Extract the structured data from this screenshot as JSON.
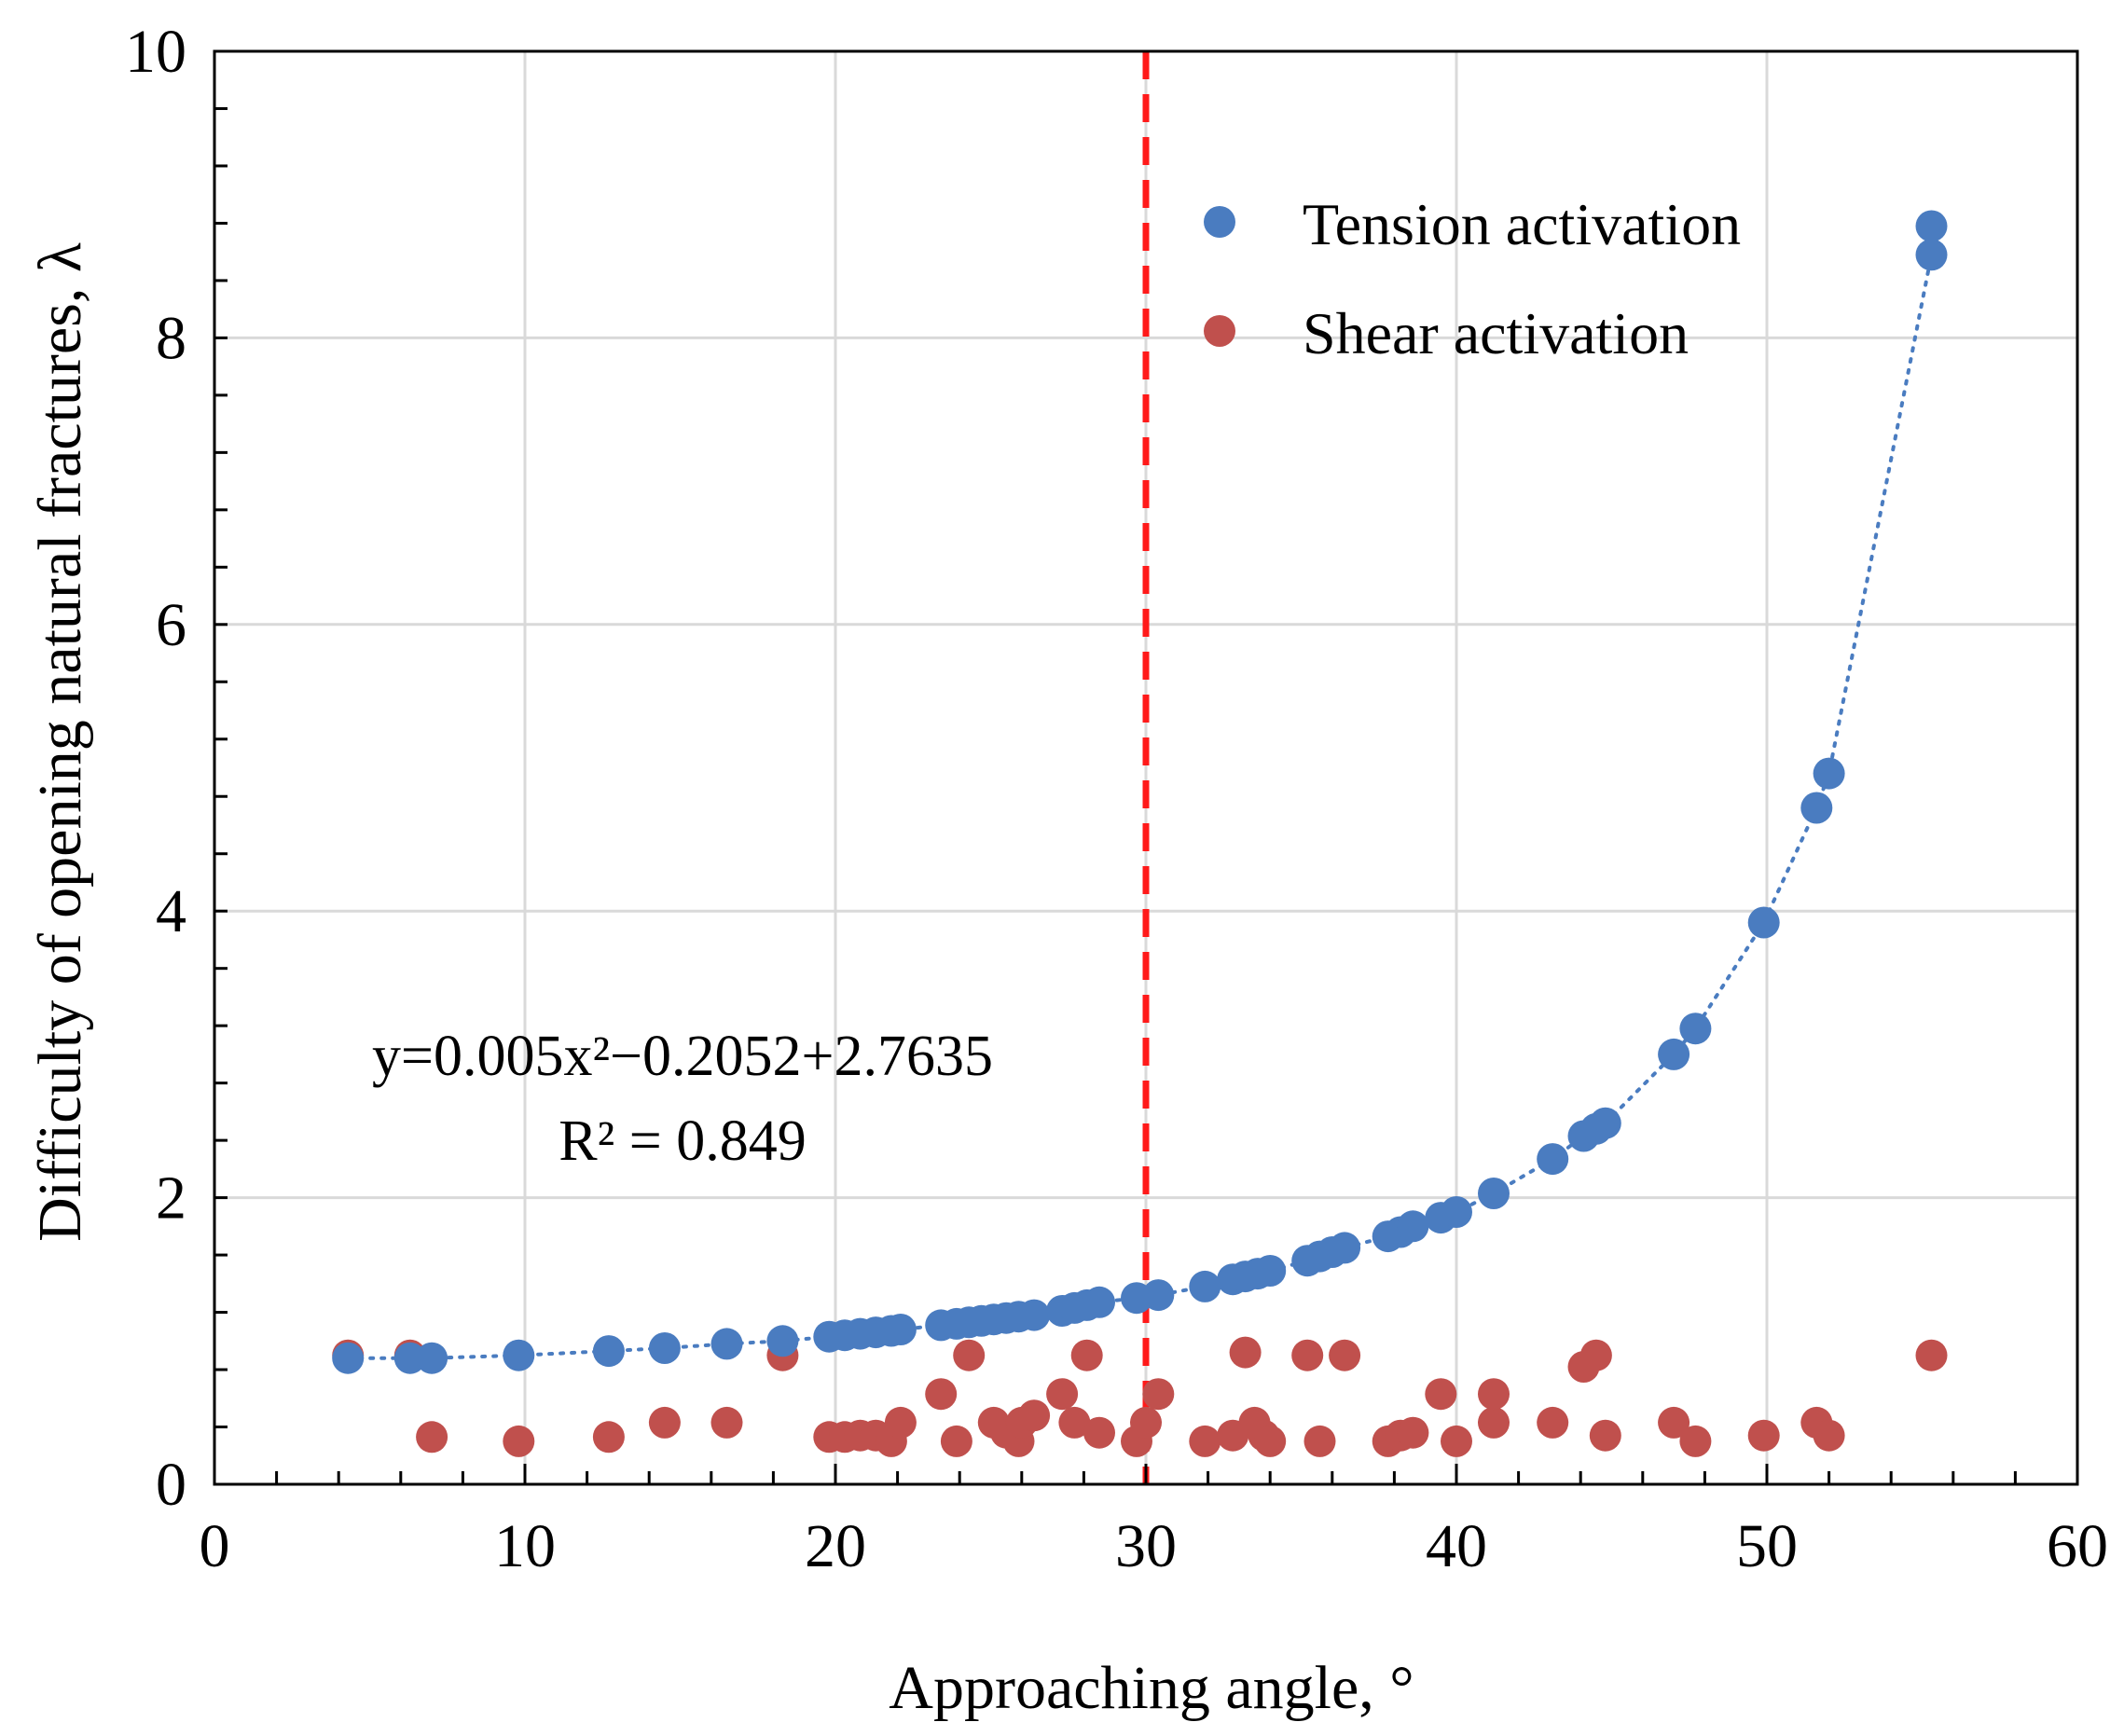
{
  "chart_data": {
    "type": "scatter",
    "xlabel": "Approaching angle, °",
    "ylabel": "Difficulty of opening natural fractures, λ",
    "xlim": [
      0,
      60
    ],
    "ylim": [
      0,
      10
    ],
    "xticks": [
      "0",
      "10",
      "20",
      "30",
      "40",
      "50",
      "60"
    ],
    "yticks": [
      "0",
      "2",
      "4",
      "6",
      "8",
      "10"
    ],
    "grid": true,
    "legend_position": "top-right",
    "vertical_reference_line": {
      "x": 30,
      "color": "#ff1a1a",
      "style": "dashed"
    },
    "annotation": {
      "equation": "y=0.005x²−0.2052+2.7635",
      "r2": "R² = 0.849"
    },
    "trendline": {
      "series": "Tension activation",
      "style": "dotted",
      "color": "#4a7cc0"
    },
    "series": [
      {
        "name": "Tension activation",
        "color": "#4a7cc0",
        "points": [
          [
            4.3,
            0.88
          ],
          [
            6.3,
            0.88
          ],
          [
            7,
            0.88
          ],
          [
            9.8,
            0.9
          ],
          [
            12.7,
            0.93
          ],
          [
            14.5,
            0.95
          ],
          [
            16.5,
            0.98
          ],
          [
            18.3,
            1.0
          ],
          [
            19.8,
            1.03
          ],
          [
            20.3,
            1.04
          ],
          [
            20.8,
            1.05
          ],
          [
            21.3,
            1.06
          ],
          [
            21.8,
            1.07
          ],
          [
            22.1,
            1.08
          ],
          [
            23.4,
            1.11
          ],
          [
            23.9,
            1.12
          ],
          [
            24.3,
            1.13
          ],
          [
            24.7,
            1.14
          ],
          [
            25.1,
            1.15
          ],
          [
            25.5,
            1.16
          ],
          [
            25.9,
            1.17
          ],
          [
            26.4,
            1.18
          ],
          [
            27.3,
            1.21
          ],
          [
            27.7,
            1.23
          ],
          [
            28.1,
            1.25
          ],
          [
            28.5,
            1.27
          ],
          [
            29.7,
            1.3
          ],
          [
            30.4,
            1.32
          ],
          [
            31.9,
            1.38
          ],
          [
            32.8,
            1.43
          ],
          [
            33.2,
            1.45
          ],
          [
            33.6,
            1.47
          ],
          [
            34.0,
            1.49
          ],
          [
            35.2,
            1.56
          ],
          [
            35.6,
            1.59
          ],
          [
            36.0,
            1.62
          ],
          [
            36.4,
            1.65
          ],
          [
            37.8,
            1.73
          ],
          [
            38.2,
            1.76
          ],
          [
            38.6,
            1.8
          ],
          [
            39.5,
            1.86
          ],
          [
            40.0,
            1.9
          ],
          [
            41.2,
            2.03
          ],
          [
            43.1,
            2.27
          ],
          [
            44.1,
            2.43
          ],
          [
            44.5,
            2.48
          ],
          [
            44.8,
            2.52
          ],
          [
            47.0,
            3.0
          ],
          [
            47.7,
            3.18
          ],
          [
            49.9,
            3.92
          ],
          [
            51.6,
            4.72
          ],
          [
            52.0,
            4.96
          ],
          [
            55.3,
            8.58
          ],
          [
            55.3,
            8.78
          ]
        ]
      },
      {
        "name": "Shear activation",
        "color": "#c0504d",
        "points": [
          [
            4.3,
            0.9
          ],
          [
            6.3,
            0.9
          ],
          [
            7.0,
            0.33
          ],
          [
            9.8,
            0.3
          ],
          [
            12.7,
            0.33
          ],
          [
            14.5,
            0.43
          ],
          [
            16.5,
            0.43
          ],
          [
            18.3,
            0.9
          ],
          [
            19.8,
            0.33
          ],
          [
            20.3,
            0.33
          ],
          [
            20.8,
            0.34
          ],
          [
            21.3,
            0.34
          ],
          [
            21.8,
            0.3
          ],
          [
            22.1,
            0.43
          ],
          [
            23.4,
            0.63
          ],
          [
            23.9,
            0.3
          ],
          [
            24.3,
            0.9
          ],
          [
            25.1,
            0.43
          ],
          [
            25.5,
            0.36
          ],
          [
            25.9,
            0.3
          ],
          [
            26.0,
            0.43
          ],
          [
            26.4,
            0.48
          ],
          [
            27.3,
            0.63
          ],
          [
            27.7,
            0.43
          ],
          [
            28.1,
            0.9
          ],
          [
            28.5,
            0.36
          ],
          [
            29.7,
            0.3
          ],
          [
            30.0,
            0.43
          ],
          [
            30.4,
            0.63
          ],
          [
            31.9,
            0.3
          ],
          [
            32.8,
            0.34
          ],
          [
            33.2,
            0.92
          ],
          [
            33.5,
            0.43
          ],
          [
            33.8,
            0.34
          ],
          [
            34.0,
            0.3
          ],
          [
            35.2,
            0.9
          ],
          [
            35.6,
            0.3
          ],
          [
            36.4,
            0.9
          ],
          [
            37.8,
            0.3
          ],
          [
            38.2,
            0.34
          ],
          [
            38.6,
            0.36
          ],
          [
            39.5,
            0.63
          ],
          [
            40.0,
            0.3
          ],
          [
            41.2,
            0.43
          ],
          [
            41.2,
            0.63
          ],
          [
            43.1,
            0.43
          ],
          [
            44.1,
            0.82
          ],
          [
            44.5,
            0.9
          ],
          [
            44.8,
            0.34
          ],
          [
            47.0,
            0.43
          ],
          [
            47.7,
            0.3
          ],
          [
            49.9,
            0.34
          ],
          [
            51.6,
            0.43
          ],
          [
            52.0,
            0.34
          ],
          [
            55.3,
            0.9
          ]
        ]
      }
    ]
  }
}
